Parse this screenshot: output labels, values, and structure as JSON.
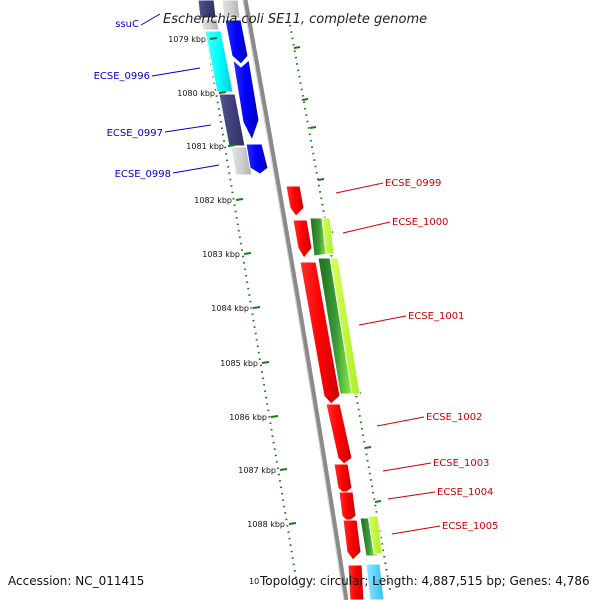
{
  "title": "Escherichia coli SE11, complete genome",
  "footer": {
    "accession": "Accession: NC_011415",
    "topology": "Topology: circular; Length: 4,887,515 bp; Genes: 4,786"
  },
  "partial_tick_label": "10",
  "colors": {
    "forward_label": "#0000cc",
    "reverse_label": "#cc0000",
    "ruler": "#1a7a1a",
    "backbone": "#888888"
  },
  "ticks": [
    {
      "label": "1079 kbp"
    },
    {
      "label": "1080 kbp"
    },
    {
      "label": "1081 kbp"
    },
    {
      "label": "1082 kbp"
    },
    {
      "label": "1083 kbp"
    },
    {
      "label": "1084 kbp"
    },
    {
      "label": "1085 kbp"
    },
    {
      "label": "1086 kbp"
    },
    {
      "label": "1087 kbp"
    },
    {
      "label": "1088 kbp"
    }
  ],
  "left_labels": [
    {
      "name": "ssuC"
    },
    {
      "name": "ECSE_0996"
    },
    {
      "name": "ECSE_0997"
    },
    {
      "name": "ECSE_0998"
    }
  ],
  "right_labels": [
    {
      "name": "ECSE_0999"
    },
    {
      "name": "ECSE_1000"
    },
    {
      "name": "ECSE_1001"
    },
    {
      "name": "ECSE_1002"
    },
    {
      "name": "ECSE_1003"
    },
    {
      "name": "ECSE_1004"
    },
    {
      "name": "ECSE_1005"
    }
  ]
}
